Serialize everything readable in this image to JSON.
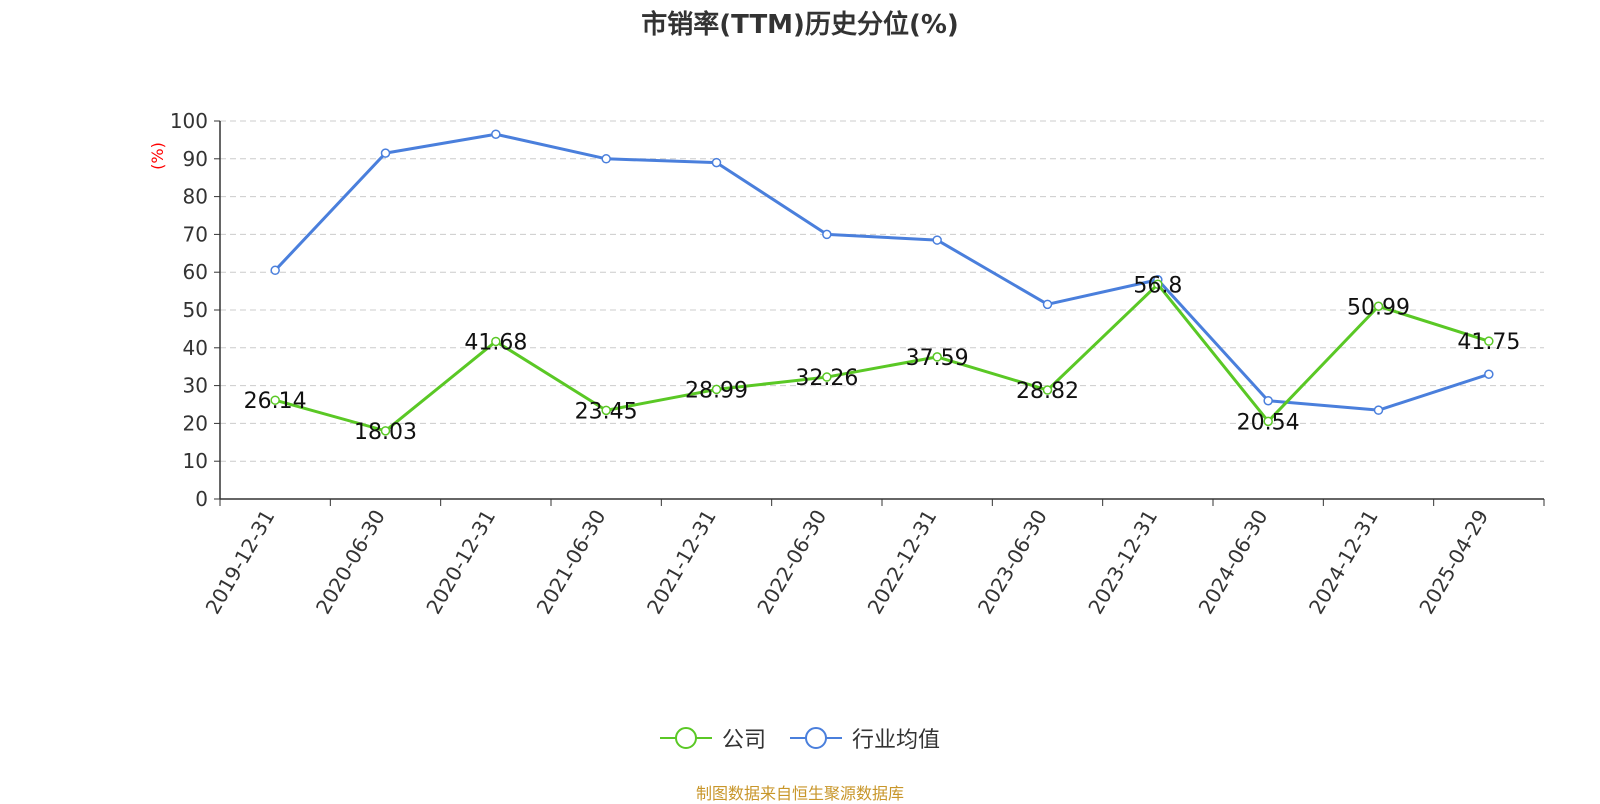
{
  "chart_data": {
    "type": "line",
    "title": "市销率(TTM)历史分位(%)",
    "ylabel": "(%)",
    "ylim": [
      0,
      100
    ],
    "ytick_step": 10,
    "grid": true,
    "legend_position": "bottom-center",
    "categories": [
      "2019-12-31",
      "2020-06-30",
      "2020-12-31",
      "2021-06-30",
      "2021-12-31",
      "2022-06-30",
      "2022-12-31",
      "2023-06-30",
      "2023-12-31",
      "2024-06-30",
      "2024-12-31",
      "2025-04-29"
    ],
    "series": [
      {
        "name": "公司",
        "color": "#5ac825",
        "values": [
          26.14,
          18.03,
          41.68,
          23.45,
          28.99,
          32.26,
          37.59,
          28.82,
          56.8,
          20.54,
          50.99,
          41.75
        ],
        "show_labels": true
      },
      {
        "name": "行业均值",
        "color": "#4a7fdc",
        "values": [
          60.5,
          91.5,
          96.5,
          90.0,
          89.0,
          70.0,
          68.5,
          51.5,
          58.0,
          26.0,
          23.5,
          33.0
        ],
        "show_labels": false
      }
    ]
  },
  "source_note": "制图数据来自恒生聚源数据库",
  "colors": {
    "axis": "#333333",
    "grid": "#cccccc",
    "ylabel": "#ff0000",
    "source_note": "#c8962a"
  }
}
